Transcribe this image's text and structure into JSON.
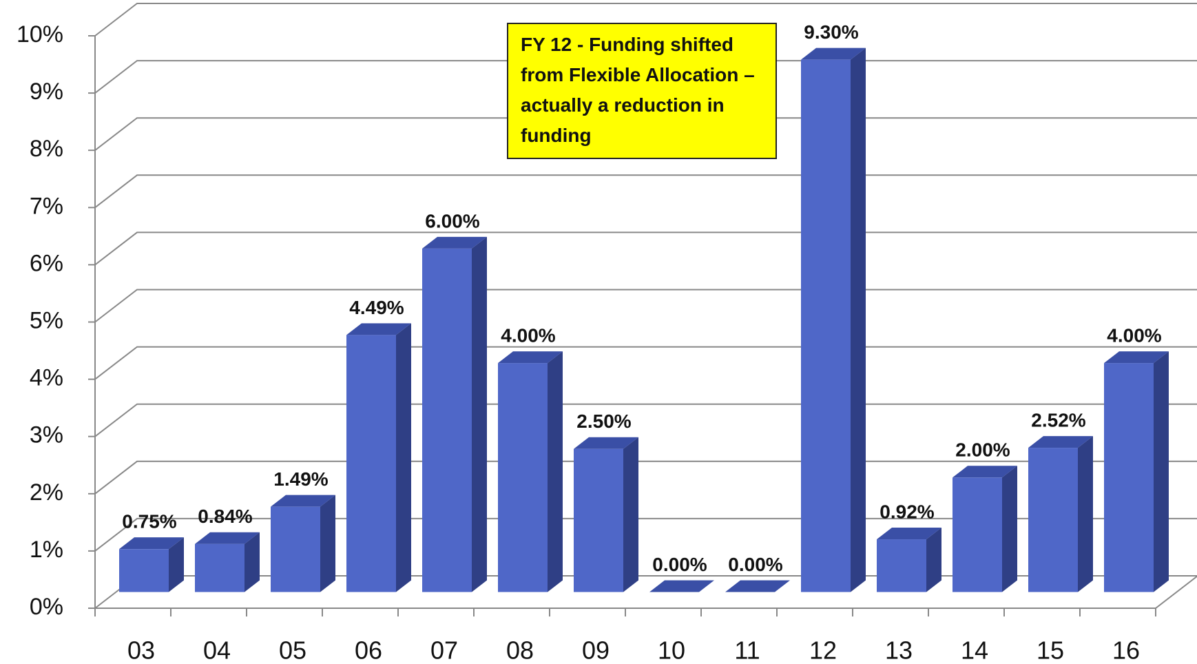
{
  "chart_data": {
    "type": "bar3d",
    "annotation": "FY 12 - Funding shifted from Flexible Allocation – actually a reduction in funding",
    "categories": [
      "03",
      "04",
      "05",
      "06",
      "07",
      "08",
      "09",
      "10",
      "11",
      "12",
      "13",
      "14",
      "15",
      "16"
    ],
    "values": [
      0.75,
      0.84,
      1.49,
      4.49,
      6.0,
      4.0,
      2.5,
      0.0,
      0.0,
      9.3,
      0.92,
      2.0,
      2.52,
      4.0
    ],
    "value_labels": [
      "0.75%",
      "0.84%",
      "1.49%",
      "4.49%",
      "6.00%",
      "4.00%",
      "2.50%",
      "0.00%",
      "0.00%",
      "9.30%",
      "0.92%",
      "2.00%",
      "2.52%",
      "4.00%"
    ],
    "color": "#4f67c8",
    "ylim": [
      0,
      10
    ],
    "yticks": [
      {
        "value": 0,
        "label": "0%"
      },
      {
        "value": 1,
        "label": "1%"
      },
      {
        "value": 2,
        "label": "2%"
      },
      {
        "value": 3,
        "label": "3%"
      },
      {
        "value": 4,
        "label": "4%"
      },
      {
        "value": 5,
        "label": "5%"
      },
      {
        "value": 6,
        "label": "6%"
      },
      {
        "value": 7,
        "label": "7%"
      },
      {
        "value": 8,
        "label": "8%"
      },
      {
        "value": 9,
        "label": "9%"
      },
      {
        "value": 10,
        "label": "10%"
      }
    ],
    "grid": true
  }
}
